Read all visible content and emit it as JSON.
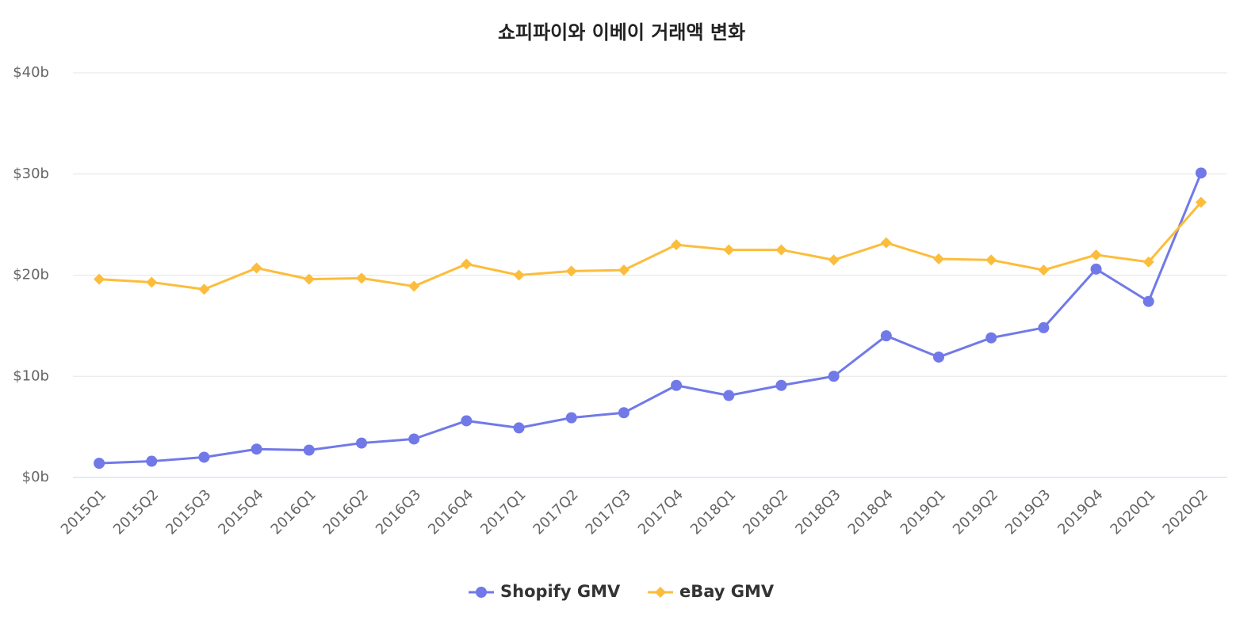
{
  "chart_data": {
    "type": "line",
    "title": "쇼피파이와 이베이 거래액 변화",
    "categories": [
      "2015Q1",
      "2015Q2",
      "2015Q3",
      "2015Q4",
      "2016Q1",
      "2016Q2",
      "2016Q3",
      "2016Q4",
      "2017Q1",
      "2017Q2",
      "2017Q3",
      "2017Q4",
      "2018Q1",
      "2018Q2",
      "2018Q3",
      "2018Q4",
      "2019Q1",
      "2019Q2",
      "2019Q3",
      "2019Q4",
      "2020Q1",
      "2020Q2"
    ],
    "series": [
      {
        "name": "Shopify GMV",
        "color": "#7179e8",
        "marker": "circle",
        "values": [
          1.4,
          1.6,
          2.0,
          2.8,
          2.7,
          3.4,
          3.8,
          5.6,
          4.9,
          5.9,
          6.4,
          9.1,
          8.1,
          9.1,
          10.0,
          14.0,
          11.9,
          13.8,
          14.8,
          20.6,
          17.4,
          30.1
        ]
      },
      {
        "name": "eBay GMV",
        "color": "#fcbd3c",
        "marker": "diamond",
        "values": [
          19.6,
          19.3,
          18.6,
          20.7,
          19.6,
          19.7,
          18.9,
          21.1,
          20.0,
          20.4,
          20.5,
          23.0,
          22.5,
          22.5,
          21.5,
          23.2,
          21.6,
          21.5,
          20.5,
          22.0,
          21.3,
          27.2
        ]
      }
    ],
    "ylim": [
      0,
      40
    ],
    "yticks": [
      {
        "value": 0,
        "label": "$0b"
      },
      {
        "value": 10,
        "label": "$10b"
      },
      {
        "value": 20,
        "label": "$20b"
      },
      {
        "value": 30,
        "label": "$30b"
      },
      {
        "value": 40,
        "label": "$40b"
      }
    ],
    "grid": true
  }
}
